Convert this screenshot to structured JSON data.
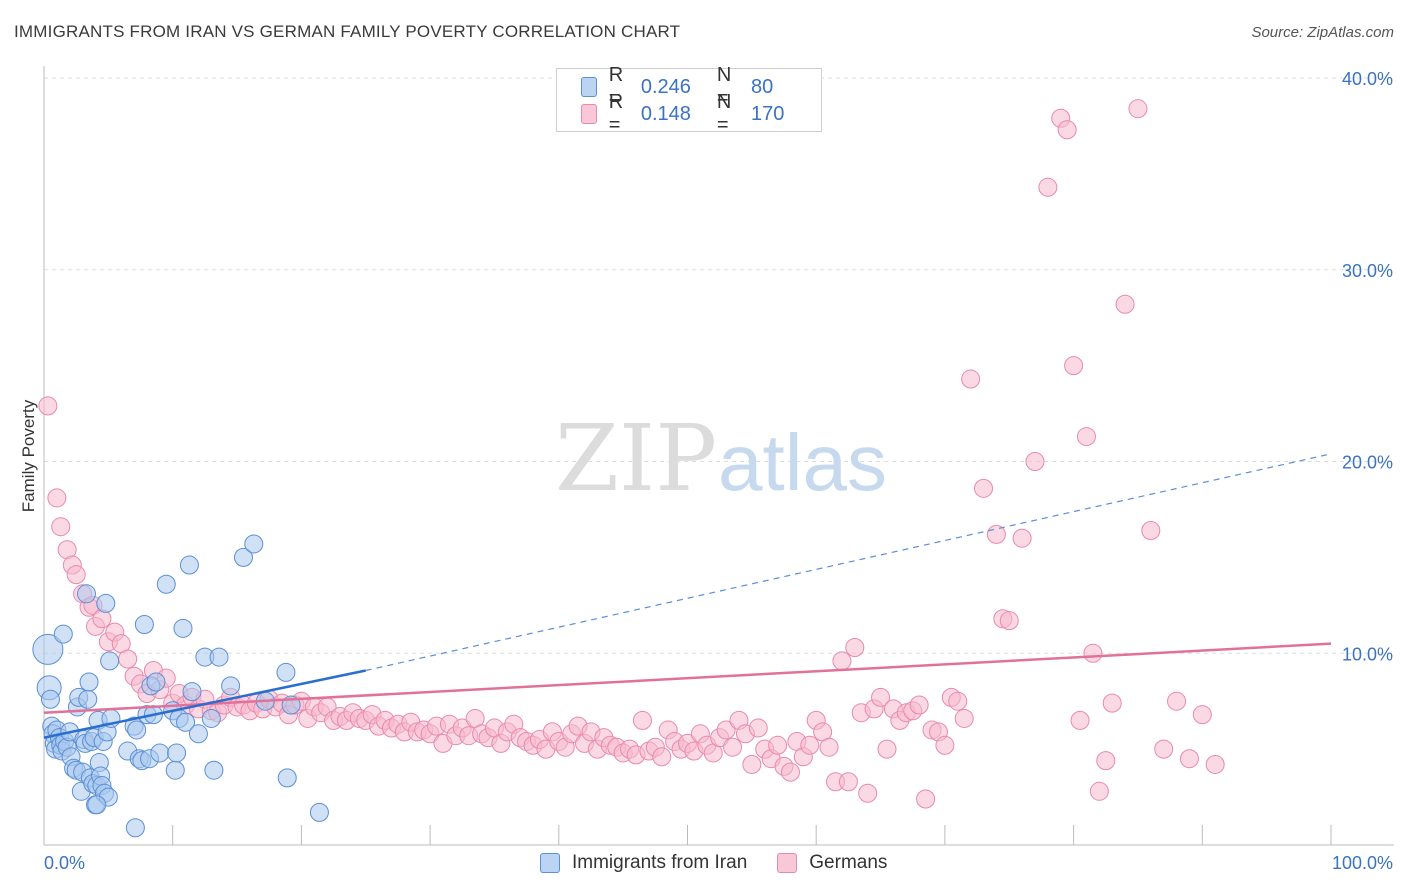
{
  "title": "IMMIGRANTS FROM IRAN VS GERMAN FAMILY POVERTY CORRELATION CHART",
  "source": "Source: ZipAtlas.com",
  "watermark": {
    "zip": "ZIP",
    "atlas": "atlas"
  },
  "legend": {
    "rows": [
      {
        "r_label": "R =",
        "r_value": "0.246",
        "n_label": "N =",
        "n_value": "80"
      },
      {
        "r_label": "R =",
        "r_value": "0.148",
        "n_label": "N =",
        "n_value": "170"
      }
    ]
  },
  "bottom_legend": {
    "series1": "Immigrants from Iran",
    "series2": "Germans"
  },
  "colors": {
    "blue_fill": "#a9c8ef",
    "blue_stroke": "#5b8fd6",
    "blue_line": "#2a6fd0",
    "pink_fill": "#f7b9cd",
    "pink_stroke": "#e98aa9",
    "pink_line": "#e2719a",
    "axis_label": "#3a72c4",
    "grid": "#dddddd"
  },
  "chart_data": {
    "type": "scatter",
    "title": "IMMIGRANTS FROM IRAN VS GERMAN FAMILY POVERTY CORRELATION CHART",
    "xlabel": "",
    "ylabel": "Family Poverty",
    "xlim": [
      0,
      100
    ],
    "ylim": [
      0,
      40
    ],
    "x_tick_labels": [
      "0.0%",
      "100.0%"
    ],
    "y_ticks": [
      10,
      20,
      30,
      40
    ],
    "y_tick_labels": [
      "10.0%",
      "20.0%",
      "30.0%",
      "40.0%"
    ],
    "grid": true,
    "legend_position": "top-center",
    "series": [
      {
        "name": "Immigrants from Iran",
        "R": 0.246,
        "N": 80,
        "trend": {
          "x0": 0,
          "y0": 5.6,
          "x1": 25,
          "y1": 9.1,
          "dashed_to_x": 100,
          "dashed_to_y": 20.4
        },
        "points": [
          [
            0.3,
            10.2
          ],
          [
            0.4,
            8.2
          ],
          [
            0.5,
            7.6
          ],
          [
            0.6,
            6.2
          ],
          [
            0.7,
            5.8
          ],
          [
            0.8,
            5.3
          ],
          [
            0.9,
            5.0
          ],
          [
            1.0,
            6.0
          ],
          [
            1.2,
            5.6
          ],
          [
            1.3,
            5.2
          ],
          [
            1.4,
            4.9
          ],
          [
            1.5,
            11.0
          ],
          [
            1.6,
            5.4
          ],
          [
            1.8,
            5.1
          ],
          [
            2.0,
            5.9
          ],
          [
            2.1,
            4.6
          ],
          [
            2.3,
            4.0
          ],
          [
            2.5,
            3.9
          ],
          [
            2.6,
            7.2
          ],
          [
            2.7,
            7.7
          ],
          [
            2.9,
            2.8
          ],
          [
            3.0,
            3.8
          ],
          [
            3.1,
            5.5
          ],
          [
            3.2,
            5.3
          ],
          [
            3.3,
            13.1
          ],
          [
            3.4,
            7.6
          ],
          [
            3.5,
            8.5
          ],
          [
            3.6,
            3.5
          ],
          [
            3.7,
            5.4
          ],
          [
            3.8,
            3.2
          ],
          [
            3.9,
            5.6
          ],
          [
            4.0,
            2.1
          ],
          [
            4.1,
            3.1
          ],
          [
            4.2,
            6.5
          ],
          [
            4.3,
            4.3
          ],
          [
            4.4,
            3.6
          ],
          [
            4.5,
            3.1
          ],
          [
            4.6,
            5.4
          ],
          [
            4.7,
            2.7
          ],
          [
            4.8,
            12.6
          ],
          [
            4.9,
            5.9
          ],
          [
            5.0,
            2.5
          ],
          [
            5.1,
            9.6
          ],
          [
            5.2,
            6.6
          ],
          [
            6.5,
            4.9
          ],
          [
            7.0,
            6.2
          ],
          [
            7.2,
            6.0
          ],
          [
            7.4,
            4.5
          ],
          [
            7.6,
            4.4
          ],
          [
            7.8,
            11.5
          ],
          [
            8.0,
            6.8
          ],
          [
            8.2,
            4.5
          ],
          [
            8.3,
            8.3
          ],
          [
            8.5,
            6.8
          ],
          [
            8.7,
            8.5
          ],
          [
            9.0,
            4.8
          ],
          [
            9.5,
            13.6
          ],
          [
            10.0,
            7.0
          ],
          [
            10.2,
            3.9
          ],
          [
            10.3,
            4.8
          ],
          [
            10.5,
            6.6
          ],
          [
            10.8,
            11.3
          ],
          [
            11.0,
            6.4
          ],
          [
            11.3,
            14.6
          ],
          [
            11.5,
            8.0
          ],
          [
            12.0,
            5.8
          ],
          [
            12.5,
            9.8
          ],
          [
            13.0,
            6.6
          ],
          [
            13.2,
            3.9
          ],
          [
            13.6,
            9.8
          ],
          [
            14.5,
            8.3
          ],
          [
            15.5,
            15.0
          ],
          [
            16.3,
            15.7
          ],
          [
            17.2,
            7.5
          ],
          [
            18.8,
            9.0
          ],
          [
            18.9,
            3.5
          ],
          [
            19.2,
            7.3
          ],
          [
            21.4,
            1.7
          ],
          [
            7.1,
            0.9
          ],
          [
            4.1,
            2.1
          ]
        ]
      },
      {
        "name": "Germans",
        "R": 0.148,
        "N": 170,
        "trend": {
          "x0": 0,
          "y0": 6.9,
          "x1": 100,
          "y1": 10.5
        },
        "points": [
          [
            0.3,
            22.9
          ],
          [
            1.0,
            18.1
          ],
          [
            1.3,
            16.6
          ],
          [
            1.8,
            15.4
          ],
          [
            2.2,
            14.6
          ],
          [
            2.5,
            14.1
          ],
          [
            3.0,
            13.1
          ],
          [
            3.5,
            12.4
          ],
          [
            3.8,
            12.5
          ],
          [
            4.0,
            11.4
          ],
          [
            4.5,
            11.8
          ],
          [
            5.0,
            10.6
          ],
          [
            5.5,
            11.1
          ],
          [
            6.0,
            10.5
          ],
          [
            6.5,
            9.7
          ],
          [
            7.0,
            8.8
          ],
          [
            7.5,
            8.4
          ],
          [
            8.0,
            7.9
          ],
          [
            8.5,
            9.1
          ],
          [
            9.0,
            8.1
          ],
          [
            9.5,
            8.7
          ],
          [
            10.0,
            7.4
          ],
          [
            10.5,
            7.9
          ],
          [
            11.0,
            7.3
          ],
          [
            11.5,
            7.7
          ],
          [
            12.0,
            7.1
          ],
          [
            12.5,
            7.6
          ],
          [
            13.0,
            7.0
          ],
          [
            13.5,
            6.9
          ],
          [
            14.0,
            7.3
          ],
          [
            14.5,
            7.7
          ],
          [
            15.0,
            7.2
          ],
          [
            15.5,
            7.3
          ],
          [
            16.0,
            7.0
          ],
          [
            16.5,
            7.4
          ],
          [
            17.0,
            7.1
          ],
          [
            17.5,
            7.6
          ],
          [
            18.0,
            7.2
          ],
          [
            18.5,
            7.4
          ],
          [
            19.0,
            6.8
          ],
          [
            19.5,
            7.3
          ],
          [
            20.0,
            7.5
          ],
          [
            20.5,
            6.6
          ],
          [
            21.0,
            7.2
          ],
          [
            21.5,
            6.9
          ],
          [
            22.0,
            7.2
          ],
          [
            22.5,
            6.5
          ],
          [
            23.0,
            6.7
          ],
          [
            23.5,
            6.5
          ],
          [
            24.0,
            6.9
          ],
          [
            24.5,
            6.6
          ],
          [
            25.0,
            6.5
          ],
          [
            25.5,
            6.8
          ],
          [
            26.0,
            6.2
          ],
          [
            26.5,
            6.5
          ],
          [
            27.0,
            6.1
          ],
          [
            27.5,
            6.3
          ],
          [
            28.0,
            5.9
          ],
          [
            28.5,
            6.4
          ],
          [
            29.0,
            5.9
          ],
          [
            29.5,
            6.0
          ],
          [
            30.0,
            5.8
          ],
          [
            30.5,
            6.2
          ],
          [
            31.0,
            5.3
          ],
          [
            31.5,
            6.3
          ],
          [
            32.0,
            5.7
          ],
          [
            32.5,
            6.1
          ],
          [
            33.0,
            5.7
          ],
          [
            33.5,
            6.6
          ],
          [
            34.0,
            5.8
          ],
          [
            34.5,
            5.6
          ],
          [
            35.0,
            6.1
          ],
          [
            35.5,
            5.3
          ],
          [
            36.0,
            5.9
          ],
          [
            36.5,
            6.3
          ],
          [
            37.0,
            5.6
          ],
          [
            37.5,
            5.4
          ],
          [
            38.0,
            5.2
          ],
          [
            38.5,
            5.5
          ],
          [
            39.0,
            5.0
          ],
          [
            39.5,
            5.9
          ],
          [
            40.0,
            5.4
          ],
          [
            40.5,
            5.1
          ],
          [
            41.0,
            5.8
          ],
          [
            41.5,
            6.2
          ],
          [
            42.0,
            5.3
          ],
          [
            42.5,
            5.9
          ],
          [
            43.0,
            5.0
          ],
          [
            43.5,
            5.6
          ],
          [
            44.0,
            5.2
          ],
          [
            44.5,
            5.1
          ],
          [
            45.0,
            4.8
          ],
          [
            45.5,
            5.0
          ],
          [
            46.0,
            4.7
          ],
          [
            46.5,
            6.5
          ],
          [
            47.0,
            4.9
          ],
          [
            47.5,
            5.1
          ],
          [
            48.0,
            4.6
          ],
          [
            48.5,
            6.0
          ],
          [
            49.0,
            5.4
          ],
          [
            49.5,
            5.0
          ],
          [
            50.0,
            5.3
          ],
          [
            50.5,
            4.9
          ],
          [
            51.0,
            5.8
          ],
          [
            51.5,
            5.2
          ],
          [
            52.0,
            4.8
          ],
          [
            52.5,
            5.6
          ],
          [
            53.0,
            6.0
          ],
          [
            53.5,
            5.1
          ],
          [
            54.0,
            6.5
          ],
          [
            54.5,
            5.8
          ],
          [
            55.0,
            4.2
          ],
          [
            55.5,
            6.1
          ],
          [
            56.0,
            5.0
          ],
          [
            56.5,
            4.5
          ],
          [
            57.0,
            5.2
          ],
          [
            57.5,
            4.1
          ],
          [
            58.0,
            3.8
          ],
          [
            58.5,
            5.4
          ],
          [
            59.0,
            4.6
          ],
          [
            59.5,
            5.2
          ],
          [
            60.0,
            6.5
          ],
          [
            60.5,
            5.9
          ],
          [
            61.0,
            5.1
          ],
          [
            61.5,
            3.3
          ],
          [
            62.0,
            9.6
          ],
          [
            62.5,
            3.3
          ],
          [
            63.0,
            10.3
          ],
          [
            63.5,
            6.9
          ],
          [
            64.0,
            2.7
          ],
          [
            64.5,
            7.1
          ],
          [
            65.0,
            7.7
          ],
          [
            65.5,
            5.0
          ],
          [
            66.0,
            7.1
          ],
          [
            66.5,
            6.5
          ],
          [
            67.0,
            6.9
          ],
          [
            67.5,
            7.0
          ],
          [
            68.0,
            7.3
          ],
          [
            68.5,
            2.4
          ],
          [
            69.0,
            6.0
          ],
          [
            69.5,
            5.9
          ],
          [
            70.0,
            5.2
          ],
          [
            70.5,
            7.7
          ],
          [
            71.0,
            7.5
          ],
          [
            71.5,
            6.6
          ],
          [
            72.0,
            24.3
          ],
          [
            73.0,
            18.6
          ],
          [
            74.0,
            16.2
          ],
          [
            74.5,
            11.8
          ],
          [
            75.0,
            11.7
          ],
          [
            76.0,
            16.0
          ],
          [
            77.0,
            20.0
          ],
          [
            78.0,
            34.3
          ],
          [
            79.0,
            37.9
          ],
          [
            79.5,
            37.3
          ],
          [
            80.0,
            25.0
          ],
          [
            80.5,
            6.5
          ],
          [
            81.0,
            21.3
          ],
          [
            81.5,
            10.0
          ],
          [
            82.0,
            2.8
          ],
          [
            82.5,
            4.4
          ],
          [
            83.0,
            7.4
          ],
          [
            84.0,
            28.2
          ],
          [
            85.0,
            38.4
          ],
          [
            86.0,
            16.4
          ],
          [
            87.0,
            5.0
          ],
          [
            88.0,
            7.5
          ],
          [
            89.0,
            4.5
          ],
          [
            90.0,
            6.8
          ],
          [
            91.0,
            4.2
          ]
        ]
      }
    ]
  }
}
